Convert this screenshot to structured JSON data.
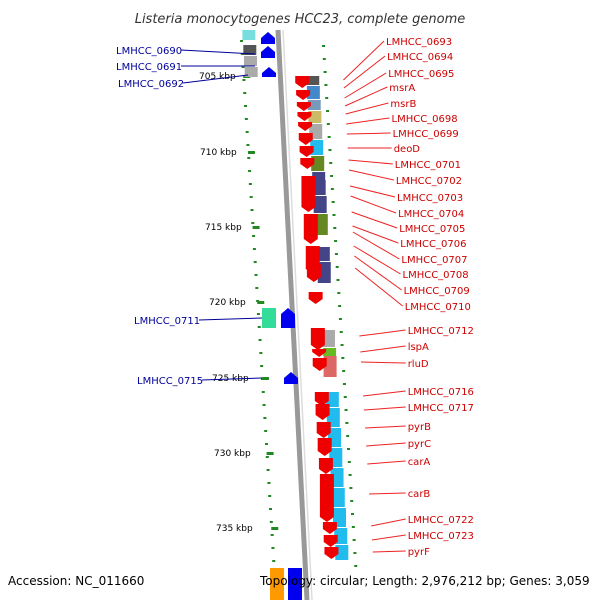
{
  "title": "Listeria monocytogenes HCC23, complete genome",
  "footer": {
    "accession": "Accession: NC_011660",
    "topology": "Topology: circular; Length: 2,976,212 bp; Genes: 3,059"
  },
  "ticks": [
    "705 kbp",
    "710 kbp",
    "715 kbp",
    "720 kbp",
    "725 kbp",
    "730 kbp",
    "735 kbp"
  ],
  "left_genes": [
    {
      "name": "LMHCC_0690",
      "color": "#0000cc"
    },
    {
      "name": "LMHCC_0691",
      "color": "#0000cc"
    },
    {
      "name": "LMHCC_0692",
      "color": "#0000cc"
    },
    {
      "name": "LMHCC_0711",
      "color": "#0000cc"
    },
    {
      "name": "LMHCC_0715",
      "color": "#0000cc"
    }
  ],
  "right_genes": [
    {
      "name": "LMHCC_0693"
    },
    {
      "name": "LMHCC_0694"
    },
    {
      "name": "LMHCC_0695"
    },
    {
      "name": "msrA"
    },
    {
      "name": "msrB"
    },
    {
      "name": "LMHCC_0698"
    },
    {
      "name": "LMHCC_0699"
    },
    {
      "name": "deoD"
    },
    {
      "name": "LMHCC_0701"
    },
    {
      "name": "LMHCC_0702"
    },
    {
      "name": "LMHCC_0703"
    },
    {
      "name": "LMHCC_0704"
    },
    {
      "name": "LMHCC_0705"
    },
    {
      "name": "LMHCC_0706"
    },
    {
      "name": "LMHCC_0707"
    },
    {
      "name": "LMHCC_0708"
    },
    {
      "name": "LMHCC_0709"
    },
    {
      "name": "LMHCC_0710"
    },
    {
      "name": "LMHCC_0712"
    },
    {
      "name": "lspA"
    },
    {
      "name": "rluD"
    },
    {
      "name": "LMHCC_0716"
    },
    {
      "name": "LMHCC_0717"
    },
    {
      "name": "pyrB"
    },
    {
      "name": "pyrC"
    },
    {
      "name": "carA"
    },
    {
      "name": "carB"
    },
    {
      "name": "LMHCC_0722"
    },
    {
      "name": "LMHCC_0723"
    },
    {
      "name": "pyrF"
    }
  ],
  "colors": {
    "forward_gene": "#ee0000",
    "reverse_gene": "#0000ee",
    "right_label": "#cc0000",
    "left_label": "#000099",
    "leader_line": "#ee2222",
    "tick": "#228822",
    "backbone": "#999999"
  }
}
